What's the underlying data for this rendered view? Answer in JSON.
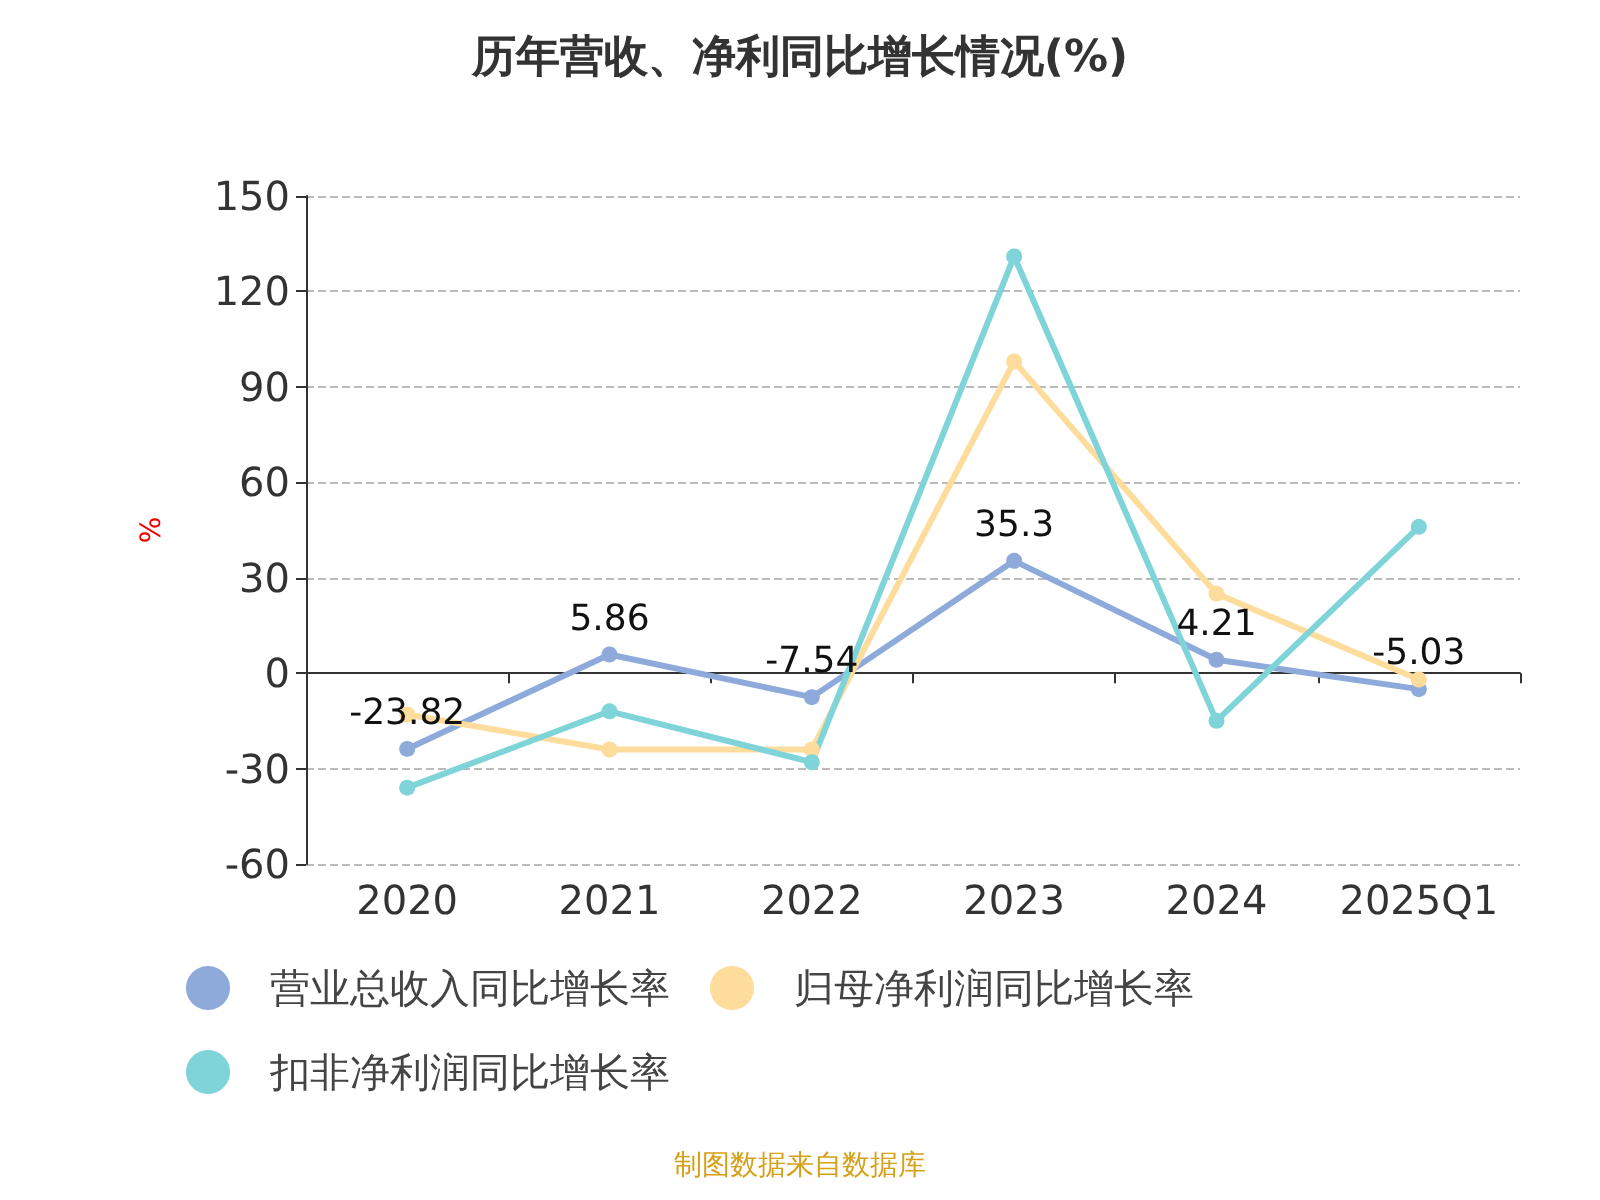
{
  "chart_data": {
    "type": "line",
    "title": "历年营收、净利同比增长情况(%)",
    "ylabel": "%",
    "categories": [
      "2020",
      "2021",
      "2022",
      "2023",
      "2024",
      "2025Q1"
    ],
    "series": [
      {
        "name": "营业总收入同比增长率",
        "color": "#8eaadb",
        "values": [
          -23.82,
          5.86,
          -7.54,
          35.3,
          4.21,
          -5.03
        ],
        "value_labels": [
          "-23.82",
          "5.86",
          "-7.54",
          "35.3",
          "4.21",
          "-5.03"
        ]
      },
      {
        "name": "归母净利润同比增长率",
        "color": "#fddc9c",
        "values": [
          -13,
          -24,
          -24,
          98,
          25,
          -2
        ]
      },
      {
        "name": "扣非净利润同比增长率",
        "color": "#7fd4d9",
        "values": [
          -36,
          -12,
          -28,
          131,
          -15,
          46
        ]
      }
    ],
    "ylim": [
      -60,
      150
    ],
    "yticks": [
      -60,
      -30,
      0,
      30,
      60,
      90,
      120,
      150
    ],
    "grid": "y",
    "legend": "bottom",
    "marker": "circle",
    "line_style": "solid",
    "annotations": [
      "制图数据来自数据库"
    ]
  }
}
